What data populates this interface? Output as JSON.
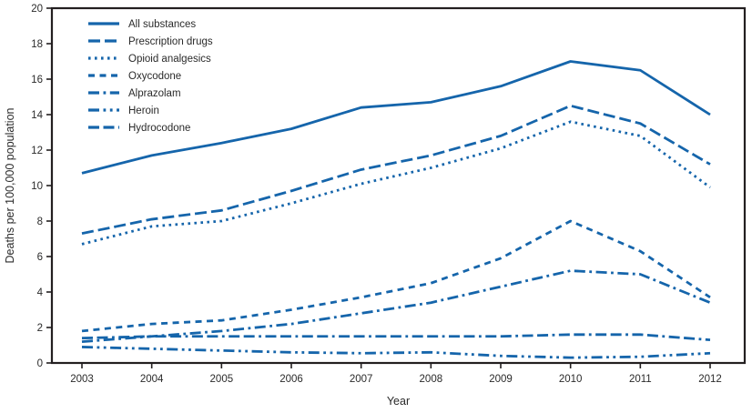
{
  "chart_data": {
    "type": "line",
    "title": "",
    "xlabel": "Year",
    "ylabel": "Deaths per 100,000 population",
    "x": [
      2003,
      2004,
      2005,
      2006,
      2007,
      2008,
      2009,
      2010,
      2011,
      2012
    ],
    "ylim": [
      0,
      20
    ],
    "ytick_step": 2,
    "yticks": [
      0,
      2,
      4,
      6,
      8,
      10,
      12,
      14,
      16,
      18,
      20
    ],
    "grid": false,
    "legend_position": "top-left",
    "line_color": "#1565ab",
    "axis_color": "#231f20",
    "text_color": "#2a2a2a",
    "series": [
      {
        "name": "All substances",
        "dash": "solid",
        "values": [
          10.7,
          11.7,
          12.4,
          13.2,
          14.4,
          14.7,
          15.6,
          17.0,
          16.5,
          14.0
        ]
      },
      {
        "name": "Prescription drugs",
        "dash": "long-dash",
        "values": [
          7.3,
          8.1,
          8.6,
          9.7,
          10.9,
          11.7,
          12.8,
          14.5,
          13.5,
          11.2
        ]
      },
      {
        "name": "Opioid analgesics",
        "dash": "dot",
        "values": [
          6.7,
          7.7,
          8.0,
          9.0,
          10.1,
          11.0,
          12.1,
          13.6,
          12.8,
          9.9
        ]
      },
      {
        "name": "Oxycodone",
        "dash": "medium-dash",
        "values": [
          1.8,
          2.2,
          2.4,
          3.0,
          3.7,
          4.5,
          5.9,
          8.0,
          6.3,
          3.7
        ]
      },
      {
        "name": "Alprazolam",
        "dash": "dash-dot",
        "values": [
          1.2,
          1.5,
          1.8,
          2.2,
          2.8,
          3.4,
          4.3,
          5.2,
          5.0,
          3.4
        ]
      },
      {
        "name": "Heroin",
        "dash": "dash-dot-dot",
        "values": [
          0.9,
          0.8,
          0.7,
          0.6,
          0.55,
          0.6,
          0.4,
          0.3,
          0.35,
          0.55
        ]
      },
      {
        "name": "Hydrocodone",
        "dash": "dash-dash-dot",
        "values": [
          1.4,
          1.5,
          1.5,
          1.5,
          1.5,
          1.5,
          1.5,
          1.6,
          1.6,
          1.3
        ]
      }
    ]
  }
}
